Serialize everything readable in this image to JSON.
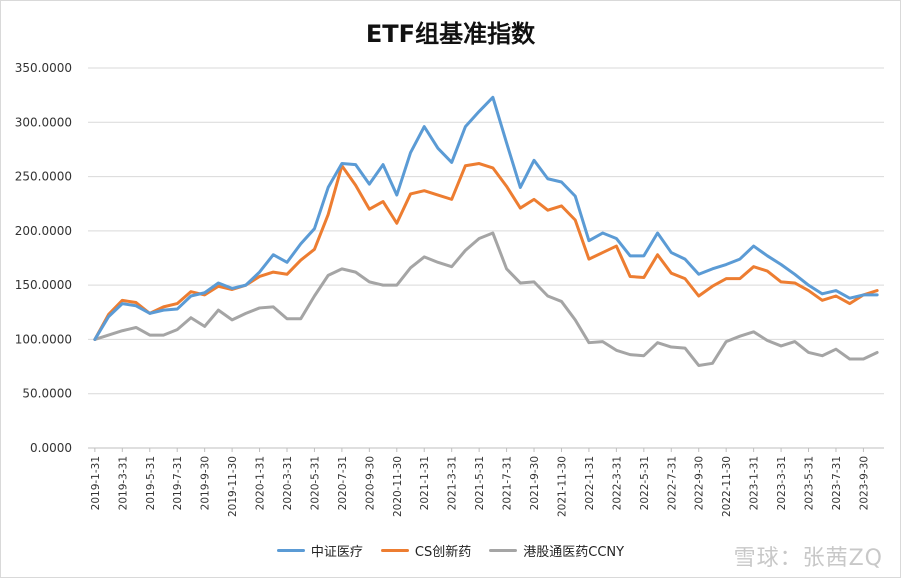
{
  "chart_data": {
    "type": "line",
    "title": "ETF组基准指数",
    "ylim": [
      0,
      350
    ],
    "y_ticks": [
      "0.0000",
      "50.0000",
      "100.0000",
      "150.0000",
      "200.0000",
      "250.0000",
      "300.0000",
      "350.0000"
    ],
    "y_tick_values": [
      0,
      50,
      100,
      150,
      200,
      250,
      300,
      350
    ],
    "x": [
      "2019-1-31",
      "2019-2-28",
      "2019-3-31",
      "2019-4-30",
      "2019-5-31",
      "2019-6-30",
      "2019-7-31",
      "2019-8-31",
      "2019-9-30",
      "2019-10-31",
      "2019-11-30",
      "2019-12-31",
      "2020-1-31",
      "2020-2-29",
      "2020-3-31",
      "2020-4-30",
      "2020-5-31",
      "2020-6-30",
      "2020-7-31",
      "2020-8-31",
      "2020-9-30",
      "2020-10-31",
      "2020-11-30",
      "2020-12-31",
      "2021-1-31",
      "2021-2-28",
      "2021-3-31",
      "2021-4-30",
      "2021-5-31",
      "2021-6-30",
      "2021-7-31",
      "2021-8-31",
      "2021-9-30",
      "2021-10-31",
      "2021-11-30",
      "2021-12-31",
      "2022-1-31",
      "2022-2-28",
      "2022-3-31",
      "2022-4-30",
      "2022-5-31",
      "2022-6-30",
      "2022-7-31",
      "2022-8-31",
      "2022-9-30",
      "2022-10-31",
      "2022-11-30",
      "2022-12-31",
      "2023-1-31",
      "2023-2-28",
      "2023-3-31",
      "2023-4-30",
      "2023-5-31",
      "2023-6-30",
      "2023-7-31",
      "2023-8-31",
      "2023-9-30",
      "2023-10-31"
    ],
    "x_tick_labels": [
      "2019-1-31",
      "2019-3-31",
      "2019-5-31",
      "2019-7-31",
      "2019-9-30",
      "2019-11-30",
      "2020-1-31",
      "2020-3-31",
      "2020-5-31",
      "2020-7-31",
      "2020-9-30",
      "2020-11-30",
      "2021-1-31",
      "2021-3-31",
      "2021-5-31",
      "2021-7-31",
      "2021-9-30",
      "2021-11-30",
      "2022-1-31",
      "2022-3-31",
      "2022-5-31",
      "2022-7-31",
      "2022-9-30",
      "2022-11-30",
      "2023-1-31",
      "2023-3-31",
      "2023-5-31",
      "2023-7-31",
      "2023-9-30"
    ],
    "grid": true,
    "legend_position": "bottom",
    "series": [
      {
        "name": "中证医疗",
        "color": "#5b9bd5",
        "values": [
          100,
          121,
          133,
          131,
          124,
          127,
          128,
          140,
          143,
          152,
          147,
          150,
          162,
          178,
          171,
          188,
          202,
          240,
          262,
          261,
          243,
          261,
          233,
          272,
          296,
          276,
          263,
          296,
          310,
          323,
          281,
          240,
          265,
          248,
          245,
          232,
          191,
          198,
          193,
          177,
          177,
          198,
          180,
          174,
          160,
          165,
          169,
          174,
          186,
          177,
          169,
          160,
          150,
          142,
          145,
          138,
          141,
          141
        ]
      },
      {
        "name": "CS创新药",
        "color": "#ed7d31",
        "values": [
          100,
          123,
          136,
          134,
          124,
          130,
          133,
          144,
          141,
          149,
          146,
          150,
          158,
          162,
          160,
          173,
          183,
          215,
          260,
          242,
          220,
          227,
          207,
          234,
          237,
          233,
          229,
          260,
          262,
          258,
          241,
          221,
          229,
          219,
          223,
          210,
          174,
          180,
          186,
          158,
          157,
          178,
          161,
          156,
          140,
          149,
          156,
          156,
          167,
          163,
          153,
          152,
          145,
          136,
          140,
          133,
          141,
          145
        ]
      },
      {
        "name": "港股通医药CCNY",
        "color": "#a5a5a5",
        "values": [
          100,
          104,
          108,
          111,
          104,
          104,
          109,
          120,
          112,
          127,
          118,
          124,
          129,
          130,
          119,
          119,
          140,
          159,
          165,
          162,
          153,
          150,
          150,
          166,
          176,
          171,
          167,
          182,
          193,
          198,
          165,
          152,
          153,
          140,
          135,
          118,
          97,
          98,
          90,
          86,
          85,
          97,
          93,
          92,
          76,
          78,
          98,
          103,
          107,
          99,
          94,
          98,
          88,
          85,
          91,
          82,
          82,
          88
        ]
      }
    ]
  },
  "watermark": "雪球：张茜ZQ"
}
